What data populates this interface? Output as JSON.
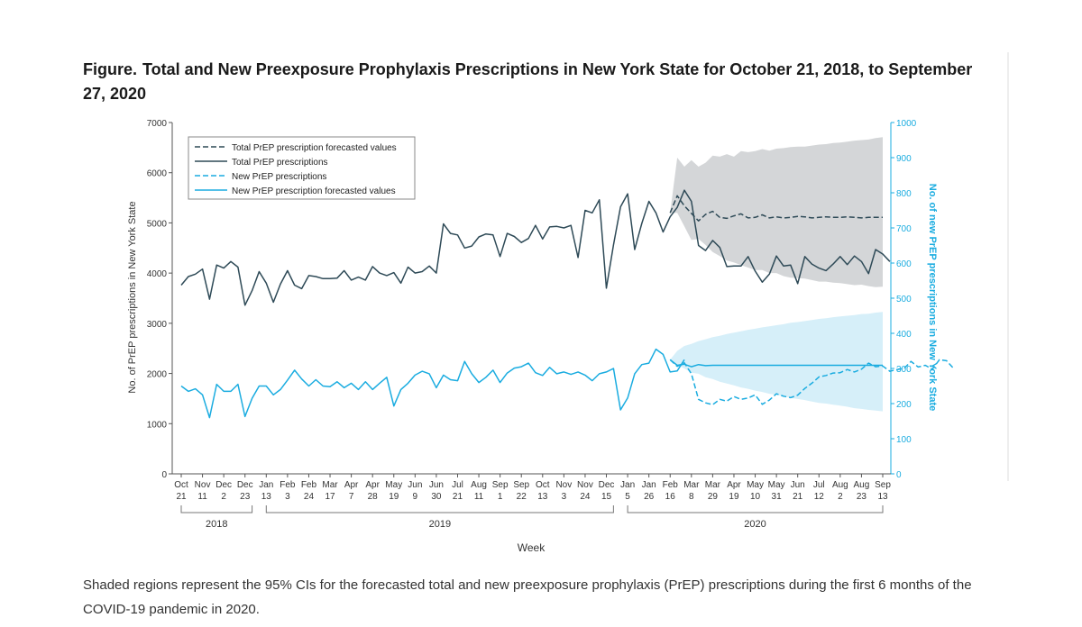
{
  "figure": {
    "label": "Figure.",
    "title": "Total and New Preexposure Prophylaxis Prescriptions in New York State for October 21, 2018, to September 27, 2020",
    "caption": "Shaded regions represent the 95% CIs for the forecasted total and new preexposure prophylaxis (PrEP) prescriptions during the first 6 months of the COVID-19 pandemic in 2020."
  },
  "colors": {
    "total": "#2e4a57",
    "new": "#1aace0",
    "total_ci": "#d4d6d8",
    "new_ci": "#d6eff9",
    "axis_right": "#1aace0"
  },
  "chart_data": {
    "type": "line",
    "xlabel": "Week",
    "ylabel_left": "No. of PrEP prescriptions in New York State",
    "ylabel_right": "No. of new PrEP prescriptions in New York State",
    "ylim_left": [
      0,
      7000
    ],
    "ylim_right": [
      0,
      1000
    ],
    "yticks_left": [
      0,
      1000,
      2000,
      3000,
      4000,
      5000,
      6000,
      7000
    ],
    "yticks_right": [
      0,
      100,
      200,
      300,
      400,
      500,
      600,
      700,
      800,
      900,
      1000
    ],
    "x_ticks": [
      {
        "month": "Oct",
        "day": "21",
        "week": 0
      },
      {
        "month": "Nov",
        "day": "11",
        "week": 3
      },
      {
        "month": "Dec",
        "day": "2",
        "week": 6
      },
      {
        "month": "Dec",
        "day": "23",
        "week": 9
      },
      {
        "month": "Jan",
        "day": "13",
        "week": 12
      },
      {
        "month": "Feb",
        "day": "3",
        "week": 15
      },
      {
        "month": "Feb",
        "day": "24",
        "week": 18
      },
      {
        "month": "Mar",
        "day": "17",
        "week": 21
      },
      {
        "month": "Apr",
        "day": "7",
        "week": 24
      },
      {
        "month": "Apr",
        "day": "28",
        "week": 27
      },
      {
        "month": "May",
        "day": "19",
        "week": 30
      },
      {
        "month": "Jun",
        "day": "9",
        "week": 33
      },
      {
        "month": "Jun",
        "day": "30",
        "week": 36
      },
      {
        "month": "Jul",
        "day": "21",
        "week": 39
      },
      {
        "month": "Aug",
        "day": "11",
        "week": 42
      },
      {
        "month": "Sep",
        "day": "1",
        "week": 45
      },
      {
        "month": "Sep",
        "day": "22",
        "week": 48
      },
      {
        "month": "Oct",
        "day": "13",
        "week": 51
      },
      {
        "month": "Nov",
        "day": "3",
        "week": 54
      },
      {
        "month": "Nov",
        "day": "24",
        "week": 57
      },
      {
        "month": "Dec",
        "day": "15",
        "week": 60
      },
      {
        "month": "Jan",
        "day": "5",
        "week": 63
      },
      {
        "month": "Jan",
        "day": "26",
        "week": 66
      },
      {
        "month": "Feb",
        "day": "16",
        "week": 69
      },
      {
        "month": "Mar",
        "day": "8",
        "week": 72
      },
      {
        "month": "Mar",
        "day": "29",
        "week": 75
      },
      {
        "month": "Apr",
        "day": "19",
        "week": 78
      },
      {
        "month": "May",
        "day": "10",
        "week": 81
      },
      {
        "month": "May",
        "day": "31",
        "week": 84
      },
      {
        "month": "Jun",
        "day": "21",
        "week": 87
      },
      {
        "month": "Jul",
        "day": "12",
        "week": 90
      },
      {
        "month": "Aug",
        "day": "2",
        "week": 93
      },
      {
        "month": "Aug",
        "day": "23",
        "week": 96
      },
      {
        "month": "Sep",
        "day": "13",
        "week": 99
      }
    ],
    "years": [
      {
        "label": "2018",
        "from_week": 0,
        "to_week": 10
      },
      {
        "label": "2019",
        "from_week": 12,
        "to_week": 61
      },
      {
        "label": "2020",
        "from_week": 63,
        "to_week": 99
      }
    ],
    "legend": {
      "placement": "top-left",
      "entries": [
        {
          "label": "Total PrEP prescription forecasted values",
          "series": "total_forecast"
        },
        {
          "label": "Total PrEP prescriptions",
          "series": "total"
        },
        {
          "label": "New PrEP prescriptions",
          "series": "new"
        },
        {
          "label": "New PrEP prescription forecasted values",
          "series": "new_forecast"
        }
      ]
    },
    "series": [
      {
        "name": "Total PrEP prescriptions",
        "key": "total",
        "axis": "left",
        "x_start": 0,
        "values": [
          3760,
          3930,
          3980,
          4080,
          3480,
          4160,
          4100,
          4230,
          4120,
          3360,
          3650,
          4030,
          3800,
          3420,
          3780,
          4050,
          3760,
          3690,
          3950,
          3930,
          3890,
          3890,
          3900,
          4050,
          3860,
          3920,
          3860,
          4130,
          4000,
          3950,
          4010,
          3800,
          4120,
          4000,
          4030,
          4140,
          4000,
          4980,
          4790,
          4760,
          4500,
          4540,
          4720,
          4780,
          4760,
          4330,
          4790,
          4730,
          4610,
          4690,
          4950,
          4680,
          4920,
          4930,
          4900,
          4950,
          4310,
          5250,
          5200,
          5460,
          3700,
          4560,
          5320,
          5580,
          4470,
          4990,
          5430,
          5200,
          4820,
          5120,
          5310,
          5650,
          5430,
          4550,
          4450,
          4650,
          4510,
          4130,
          4140,
          4140,
          4330,
          4040,
          3820,
          3980,
          4340,
          4140,
          4160,
          3790,
          4330,
          4180,
          4100,
          4050,
          4180,
          4330,
          4170,
          4340,
          4230,
          3990,
          4470,
          4380,
          4230
        ],
        "dashed": false
      },
      {
        "name": "Total PrEP prescription forecasted values",
        "key": "total_forecast",
        "axis": "left",
        "x_start": 69,
        "values": [
          5200,
          5540,
          5340,
          5190,
          5040,
          5170,
          5230,
          5110,
          5090,
          5140,
          5180,
          5100,
          5110,
          5160,
          5100,
          5120,
          5100,
          5110,
          5130,
          5120,
          5100,
          5110,
          5120,
          5110,
          5110,
          5120,
          5110,
          5100,
          5110,
          5110,
          5110
        ],
        "ci_upper": [
          5200,
          6300,
          6120,
          6250,
          6120,
          6200,
          6340,
          6320,
          6370,
          6320,
          6430,
          6410,
          6430,
          6470,
          6440,
          6480,
          6490,
          6510,
          6520,
          6520,
          6540,
          6560,
          6570,
          6590,
          6600,
          6620,
          6640,
          6650,
          6660,
          6690,
          6710
        ],
        "ci_lower": [
          5200,
          5200,
          4930,
          4660,
          4680,
          4560,
          4420,
          4340,
          4250,
          4210,
          4160,
          4110,
          4060,
          4060,
          4000,
          4000,
          3940,
          3910,
          3900,
          3890,
          3860,
          3830,
          3830,
          3810,
          3800,
          3780,
          3760,
          3770,
          3740,
          3720,
          3730
        ],
        "dashed": true
      },
      {
        "name": "New PrEP prescriptions",
        "key": "new",
        "axis": "right",
        "x_start": 0,
        "values": [
          250,
          235,
          242,
          225,
          160,
          255,
          235,
          235,
          255,
          163,
          215,
          250,
          250,
          225,
          240,
          267,
          295,
          270,
          250,
          268,
          250,
          248,
          262,
          245,
          258,
          240,
          262,
          240,
          258,
          275,
          193,
          240,
          258,
          281,
          292,
          285,
          245,
          281,
          268,
          265,
          320,
          285,
          260,
          275,
          295,
          260,
          287,
          301,
          305,
          315,
          288,
          280,
          303,
          285,
          290,
          283,
          290,
          281,
          265,
          285,
          290,
          300,
          182,
          216,
          285,
          311,
          315,
          355,
          340,
          290,
          293,
          325
        ],
        "dashed": false
      },
      {
        "name": "New PrEP prescription forecasted values",
        "key": "new_forecast",
        "axis": "right",
        "x_start": 69,
        "values": [
          325,
          309,
          312,
          305,
          311,
          308,
          309,
          309,
          309,
          309,
          309,
          309,
          309,
          309,
          309,
          309,
          309,
          309,
          309,
          309,
          309,
          309,
          309,
          309,
          309,
          309,
          309,
          309,
          309,
          309,
          309
        ],
        "ci_upper": [
          325,
          350,
          364,
          370,
          378,
          383,
          389,
          393,
          398,
          402,
          406,
          410,
          413,
          417,
          420,
          423,
          426,
          430,
          432,
          435,
          438,
          441,
          443,
          446,
          448,
          450,
          452,
          455,
          456,
          459,
          461
        ],
        "ci_lower": [
          325,
          310,
          300,
          288,
          285,
          275,
          270,
          262,
          257,
          252,
          246,
          242,
          237,
          233,
          228,
          225,
          221,
          216,
          213,
          210,
          206,
          202,
          200,
          197,
          194,
          191,
          187,
          185,
          182,
          180,
          178
        ],
        "dashed": false
      },
      {
        "name": "New PrEP prescriptions",
        "key": "new_actual_2020",
        "axis": "right",
        "x_start": 69,
        "values": [
          325,
          306,
          316,
          285,
          212,
          202,
          197,
          212,
          207,
          220,
          212,
          216,
          225,
          198,
          210,
          228,
          221,
          217,
          224,
          243,
          258,
          276,
          280,
          287,
          288,
          297,
          290,
          298,
          315,
          305,
          307,
          292,
          297,
          300,
          320,
          304,
          309,
          298,
          325,
          322,
          300
        ],
        "dashed": true
      }
    ]
  }
}
